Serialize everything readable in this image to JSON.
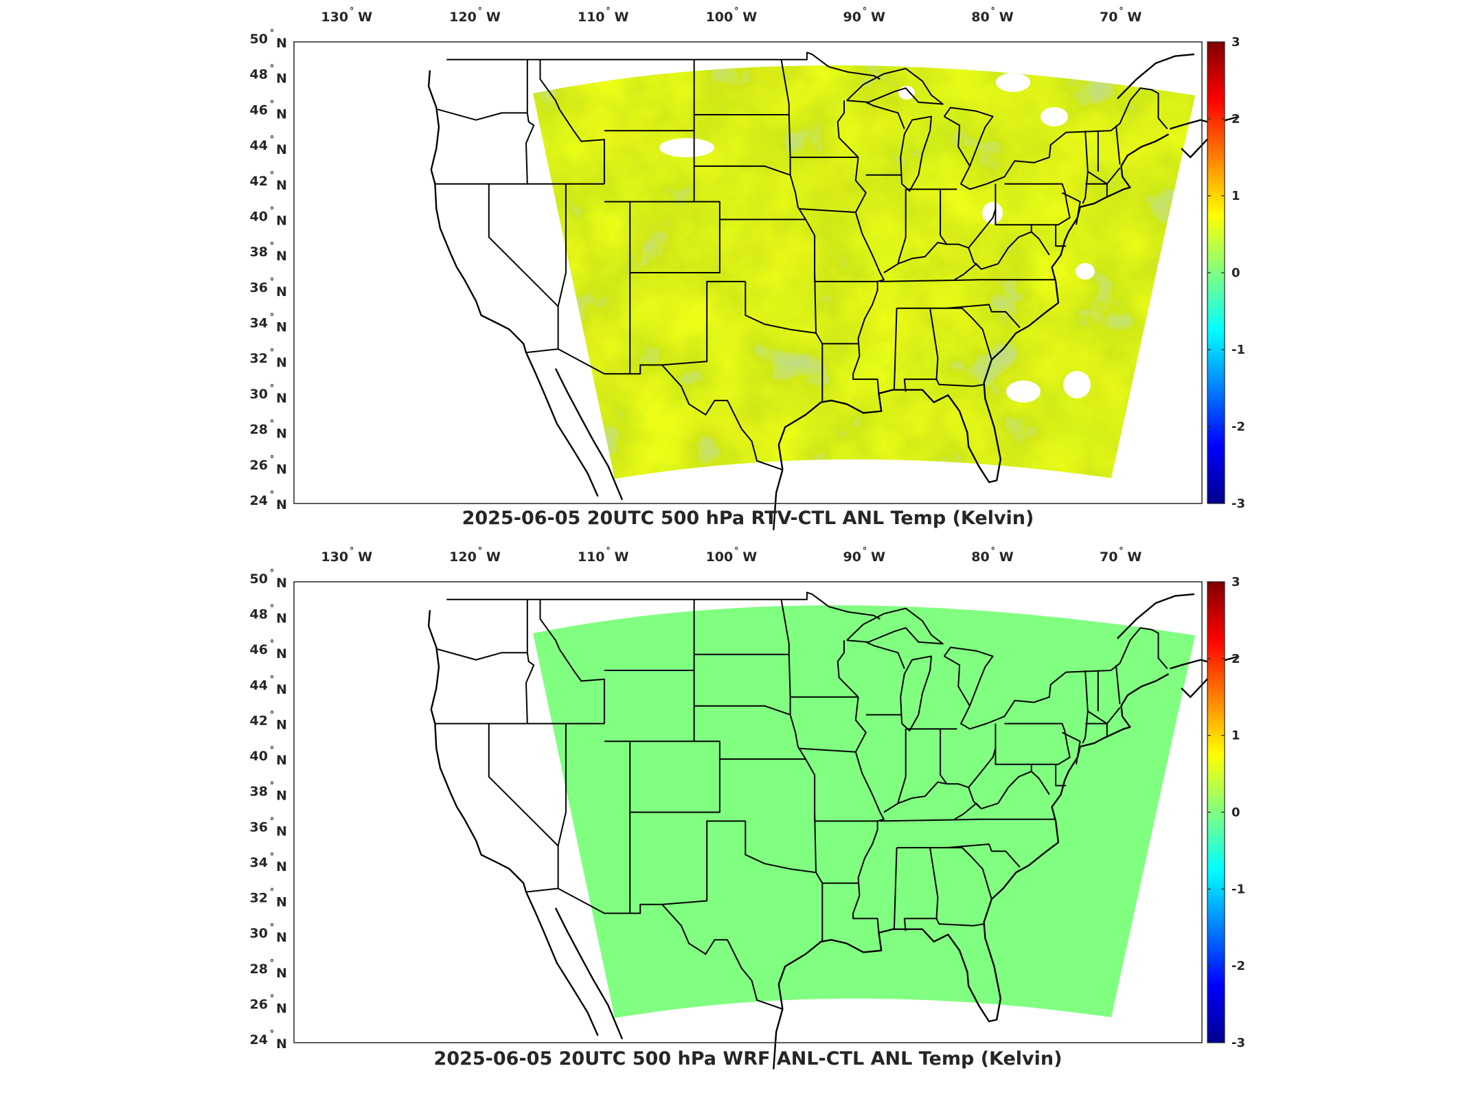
{
  "panels": [
    {
      "title": "2025-06-05 20UTC 500 hPa RTV-CTL ANL Temp (Kelvin)",
      "field": "noisy"
    },
    {
      "title": "2025-06-05 20UTC 500 hPa WRF ANL-CTL ANL Temp (Kelvin)",
      "field": "uniform"
    }
  ],
  "map": {
    "lon_ticks": [
      "130",
      "120",
      "110",
      "100",
      "90",
      "80",
      "70"
    ],
    "lon_hemi": "W",
    "lat_ticks": [
      "50",
      "48",
      "46",
      "44",
      "42",
      "40",
      "38",
      "36",
      "34",
      "32",
      "30",
      "28",
      "26",
      "24"
    ],
    "lat_hemi": "N",
    "degree_symbol": "°"
  },
  "colorbar": {
    "ticks": [
      "3",
      "2",
      "1",
      "0",
      "-1",
      "-2",
      "-3"
    ],
    "range": [
      -3,
      3
    ],
    "colormap": "jet",
    "colors": [
      "#00008f",
      "#0000ff",
      "#0080ff",
      "#00ffff",
      "#80ff80",
      "#ffff00",
      "#ff8000",
      "#ff0000",
      "#800000"
    ]
  },
  "field_colors": {
    "uniform": "#80ff80",
    "noisy_base": "#8ef27a"
  }
}
